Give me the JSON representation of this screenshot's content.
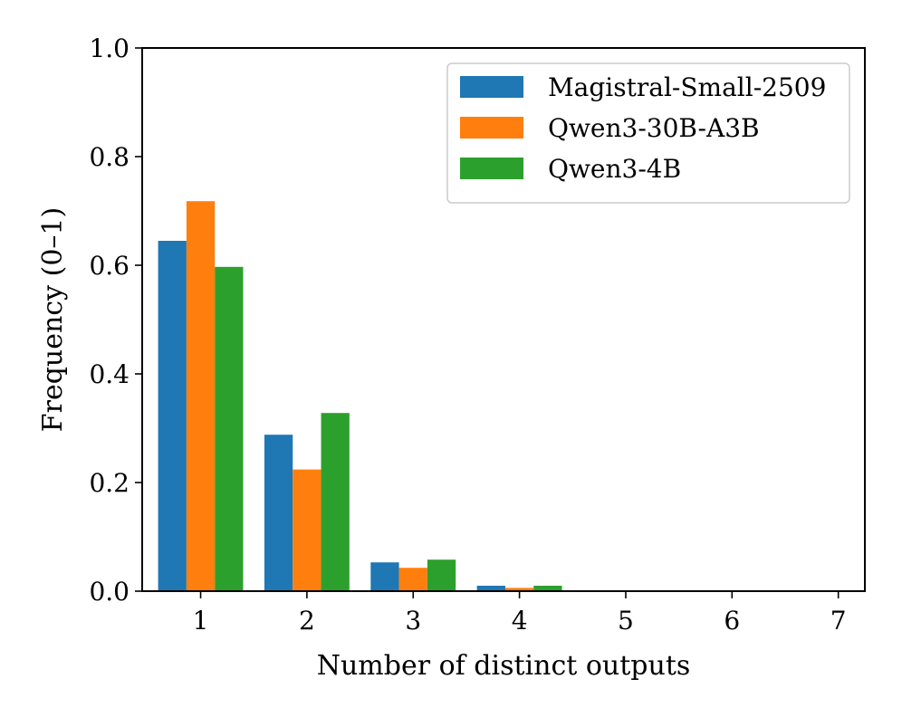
{
  "chart_data": {
    "type": "bar",
    "title": "",
    "xlabel": "Number of distinct outputs",
    "ylabel": "Frequency (0–1)",
    "categories": [
      "1",
      "2",
      "3",
      "4",
      "5",
      "6",
      "7"
    ],
    "x": [
      1,
      2,
      3,
      4,
      5,
      6,
      7
    ],
    "xlim": [
      0.45,
      7.25
    ],
    "ylim": [
      0.0,
      1.0
    ],
    "yticks": [
      0.0,
      0.2,
      0.4,
      0.6,
      0.8,
      1.0
    ],
    "ytick_labels": [
      "0.0",
      "0.2",
      "0.4",
      "0.6",
      "0.8",
      "1.0"
    ],
    "grid": false,
    "legend_position": "top-right",
    "series": [
      {
        "name": "Magistral-Small-2509",
        "color": "#1f77b4",
        "values": [
          0.645,
          0.288,
          0.053,
          0.01,
          0.0,
          0.0,
          0.0
        ]
      },
      {
        "name": "Qwen3-30B-A3B",
        "color": "#ff7f0e",
        "values": [
          0.718,
          0.224,
          0.043,
          0.006,
          0.0,
          0.0,
          0.0
        ]
      },
      {
        "name": "Qwen3-4B",
        "color": "#2ca02c",
        "values": [
          0.597,
          0.328,
          0.058,
          0.01,
          0.0,
          0.0,
          0.0
        ]
      }
    ]
  }
}
